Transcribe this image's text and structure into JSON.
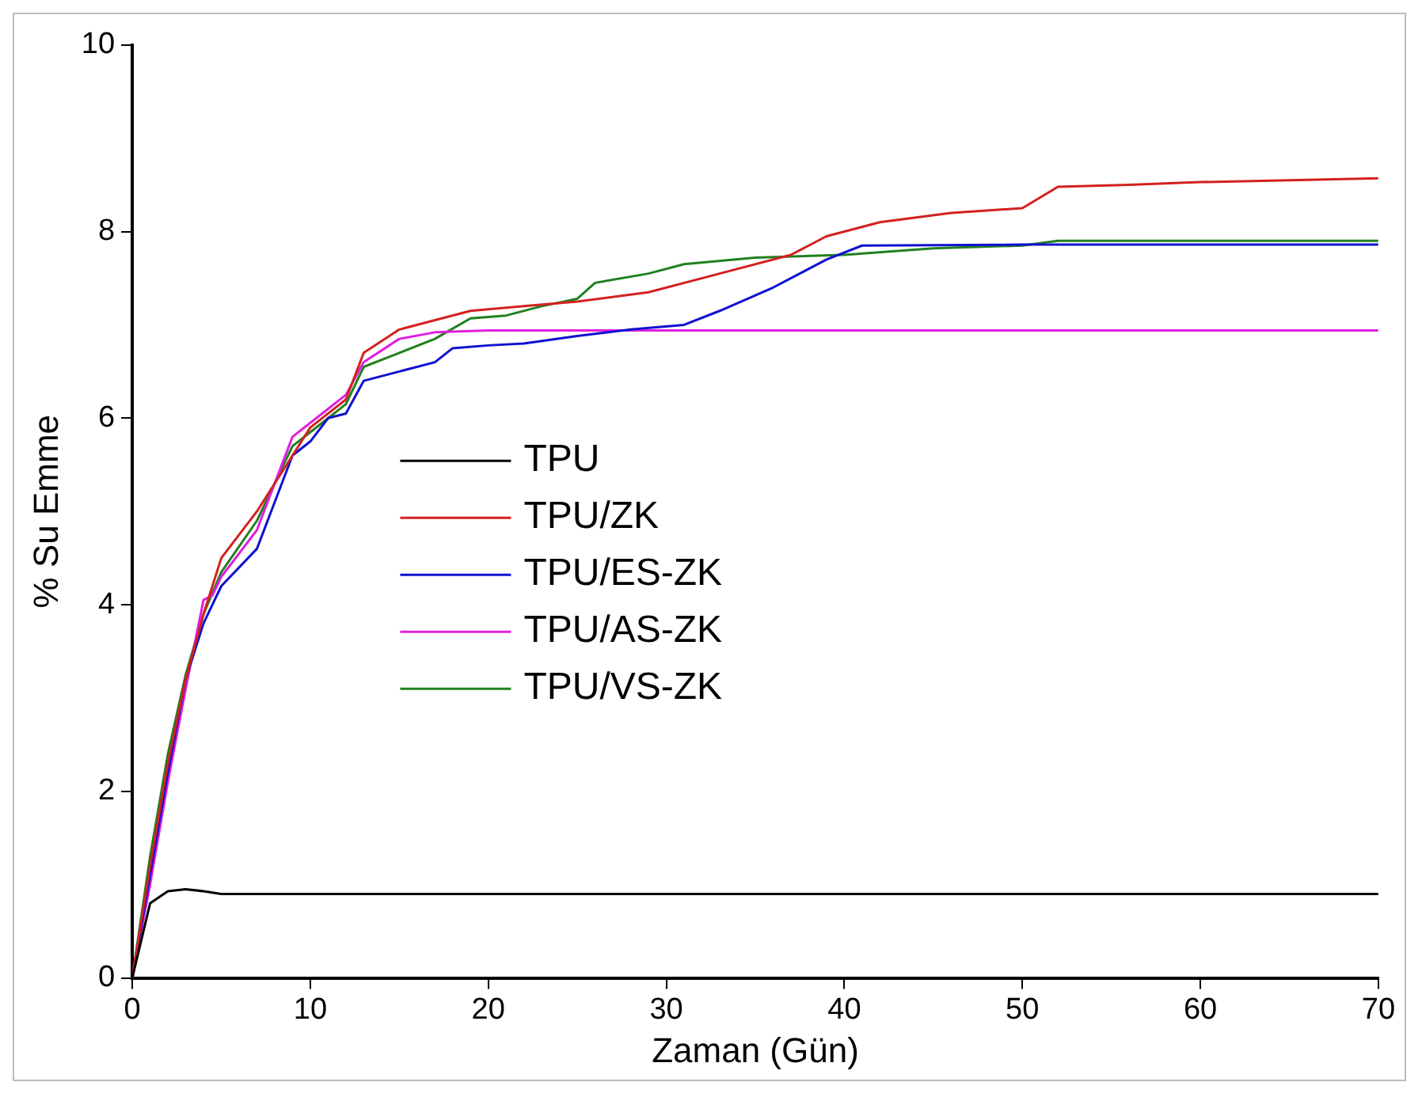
{
  "chart_data": {
    "type": "line",
    "xlabel": "Zaman (Gün)",
    "ylabel": "% Su Emme",
    "xlim": [
      0,
      70
    ],
    "xticks": [
      0,
      10,
      20,
      30,
      40,
      50,
      60,
      70
    ],
    "ylim": [
      0,
      10
    ],
    "yticks": [
      0,
      2,
      4,
      6,
      8,
      10
    ],
    "grid": false,
    "legend": "left",
    "marker": "none",
    "line_style": "solid",
    "series": [
      {
        "name": "TPU",
        "color": "#000000",
        "x": [
          0,
          1,
          2,
          3,
          4,
          5,
          7,
          70
        ],
        "values": [
          0,
          0.8,
          0.93,
          0.95,
          0.93,
          0.9,
          0.9,
          0.9
        ]
      },
      {
        "name": "TPU/ZK",
        "color": "#d42020",
        "x": [
          0,
          1,
          2,
          3,
          4,
          5,
          7,
          9,
          10,
          12,
          13,
          15,
          17,
          19,
          22,
          25,
          29,
          33,
          37,
          39,
          42,
          46,
          50,
          52,
          56,
          60,
          65,
          70
        ],
        "values": [
          0,
          1.2,
          2.3,
          3.2,
          3.9,
          4.5,
          5.0,
          5.6,
          5.9,
          6.2,
          6.7,
          6.95,
          7.05,
          7.15,
          7.2,
          7.25,
          7.35,
          7.55,
          7.75,
          7.95,
          8.1,
          8.2,
          8.25,
          8.48,
          8.5,
          8.53,
          8.55,
          8.57
        ]
      },
      {
        "name": "TPU/ES-ZK",
        "color": "#1010d0",
        "x": [
          0,
          1,
          2,
          3,
          4,
          5,
          7,
          8,
          9,
          10,
          11,
          12,
          13,
          15,
          17,
          18,
          20,
          22,
          25,
          28,
          31,
          33,
          36,
          39,
          41,
          50,
          70
        ],
        "values": [
          0,
          1.1,
          2.2,
          3.2,
          3.8,
          4.2,
          4.6,
          5.1,
          5.6,
          5.75,
          6.0,
          6.05,
          6.4,
          6.5,
          6.6,
          6.75,
          6.78,
          6.8,
          6.88,
          6.95,
          7.0,
          7.15,
          7.4,
          7.7,
          7.85,
          7.86,
          7.86
        ]
      },
      {
        "name": "TPU/AS-ZK",
        "color": "#e020e0",
        "x": [
          0,
          1,
          2,
          3,
          4,
          4.5,
          5,
          7,
          9,
          10,
          12,
          13,
          15,
          17,
          20,
          70
        ],
        "values": [
          0,
          1.0,
          2.1,
          3.1,
          4.05,
          4.1,
          4.3,
          4.8,
          5.8,
          5.95,
          6.25,
          6.6,
          6.85,
          6.92,
          6.94,
          6.94
        ]
      },
      {
        "name": "TPU/VS-ZK",
        "color": "#208020",
        "x": [
          0,
          1,
          2,
          3,
          4,
          5,
          7,
          9,
          10,
          12,
          13,
          15,
          17,
          19,
          21,
          23,
          25,
          26,
          29,
          31,
          35,
          40,
          45,
          50,
          52,
          70
        ],
        "values": [
          0,
          1.3,
          2.4,
          3.25,
          3.9,
          4.35,
          4.9,
          5.7,
          5.85,
          6.15,
          6.55,
          6.7,
          6.85,
          7.07,
          7.1,
          7.2,
          7.28,
          7.45,
          7.55,
          7.65,
          7.72,
          7.75,
          7.82,
          7.85,
          7.9,
          7.9
        ]
      }
    ]
  }
}
